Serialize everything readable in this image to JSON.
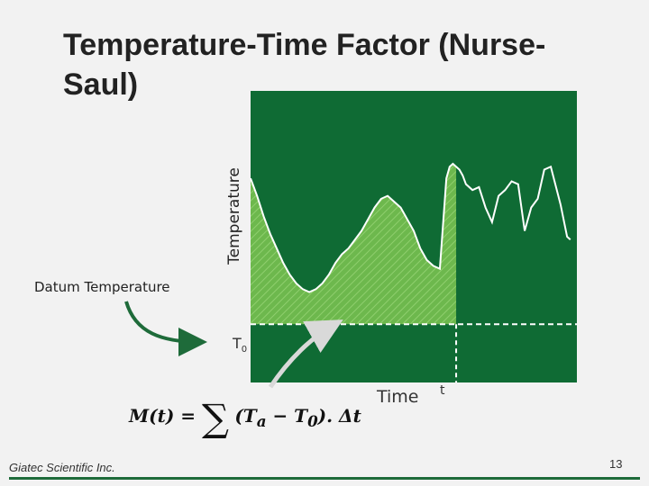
{
  "slide": {
    "title": "Temperature-Time Factor (Nurse-Saul)",
    "datum_label": "Datum Temperature",
    "footer": "Giatec Scientific Inc.",
    "page_number": "13",
    "formula": {
      "lhs": "M(t) = ",
      "sum": "∑",
      "rhs": "(T",
      "sub_a": "a",
      "minus": " − T",
      "sub_0": "0",
      "tail": "). Δt"
    }
  },
  "chart_data": {
    "type": "area",
    "title": "",
    "xlabel": "Time",
    "ylabel": "Temperature",
    "datum_label": "T",
    "datum_sub": "0",
    "cutoff_label": "t",
    "datum_value": 0.2,
    "cutoff_x": 0.63,
    "xlim": [
      0,
      1
    ],
    "ylim": [
      0,
      1
    ],
    "colors": {
      "plot_bg": "#0f6b34",
      "fill": "#6db84d",
      "curve": "#ffffff",
      "arrow": "#1e6b3a",
      "light_arrow": "#d9d9d9"
    },
    "series": [
      {
        "x": [
          0.0,
          0.02,
          0.04,
          0.06,
          0.08,
          0.1,
          0.12,
          0.14,
          0.16,
          0.18,
          0.2,
          0.22,
          0.24,
          0.26,
          0.28,
          0.3,
          0.32,
          0.34,
          0.36,
          0.38,
          0.4,
          0.42,
          0.44,
          0.46,
          0.48,
          0.5,
          0.52,
          0.54,
          0.56,
          0.58,
          0.6,
          0.61,
          0.62,
          0.63,
          0.64,
          0.65,
          0.66,
          0.68,
          0.7,
          0.72,
          0.74,
          0.76,
          0.78,
          0.8,
          0.82,
          0.84,
          0.86,
          0.88,
          0.9,
          0.92,
          0.95,
          0.97,
          0.98
        ],
        "y": [
          0.7,
          0.64,
          0.57,
          0.51,
          0.46,
          0.41,
          0.37,
          0.34,
          0.32,
          0.31,
          0.32,
          0.34,
          0.37,
          0.41,
          0.44,
          0.46,
          0.49,
          0.52,
          0.56,
          0.6,
          0.63,
          0.64,
          0.62,
          0.6,
          0.56,
          0.52,
          0.46,
          0.42,
          0.4,
          0.39,
          0.7,
          0.74,
          0.75,
          0.74,
          0.73,
          0.71,
          0.68,
          0.66,
          0.67,
          0.6,
          0.55,
          0.64,
          0.66,
          0.69,
          0.68,
          0.52,
          0.6,
          0.63,
          0.73,
          0.74,
          0.61,
          0.5,
          0.49
        ]
      }
    ]
  }
}
